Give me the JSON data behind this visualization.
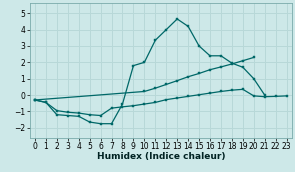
{
  "xlabel": "Humidex (Indice chaleur)",
  "bg_color": "#cde8e8",
  "grid_color": "#b8d8d8",
  "line_color": "#006868",
  "xlim": [
    -0.5,
    23.5
  ],
  "ylim": [
    -2.6,
    5.6
  ],
  "yticks": [
    -2,
    -1,
    0,
    1,
    2,
    3,
    4,
    5
  ],
  "xticks": [
    0,
    1,
    2,
    3,
    4,
    5,
    6,
    7,
    8,
    9,
    10,
    11,
    12,
    13,
    14,
    15,
    16,
    17,
    18,
    19,
    20,
    21,
    22,
    23
  ],
  "line1_x": [
    0,
    1,
    2,
    3,
    4,
    5,
    6,
    7,
    8,
    9,
    10,
    11,
    12,
    13,
    14,
    15,
    16,
    17,
    18,
    19,
    20,
    21
  ],
  "line1_y": [
    -0.3,
    -0.45,
    -1.2,
    -1.25,
    -1.3,
    -1.65,
    -1.75,
    -1.75,
    -0.55,
    1.8,
    2.0,
    3.35,
    4.0,
    4.65,
    4.2,
    3.0,
    2.4,
    2.4,
    1.95,
    1.7,
    1.0,
    0.0
  ],
  "line2_x": [
    0,
    1,
    2,
    3,
    4,
    5,
    6,
    7,
    8,
    9,
    10,
    11,
    12,
    13,
    14,
    15,
    16,
    17,
    18,
    19,
    20,
    21,
    22,
    23
  ],
  "line2_y": [
    -0.3,
    -0.45,
    -0.95,
    -1.05,
    -1.1,
    -1.2,
    -1.25,
    -0.8,
    -0.72,
    -0.65,
    -0.55,
    -0.45,
    -0.28,
    -0.18,
    -0.08,
    0.02,
    0.12,
    0.22,
    0.3,
    0.35,
    -0.05,
    -0.1,
    -0.08,
    -0.05
  ],
  "line3_x": [
    0,
    10,
    11,
    12,
    13,
    14,
    15,
    16,
    17,
    18,
    19,
    20
  ],
  "line3_y": [
    -0.3,
    0.22,
    0.42,
    0.65,
    0.88,
    1.12,
    1.32,
    1.55,
    1.72,
    1.9,
    2.1,
    2.3
  ]
}
